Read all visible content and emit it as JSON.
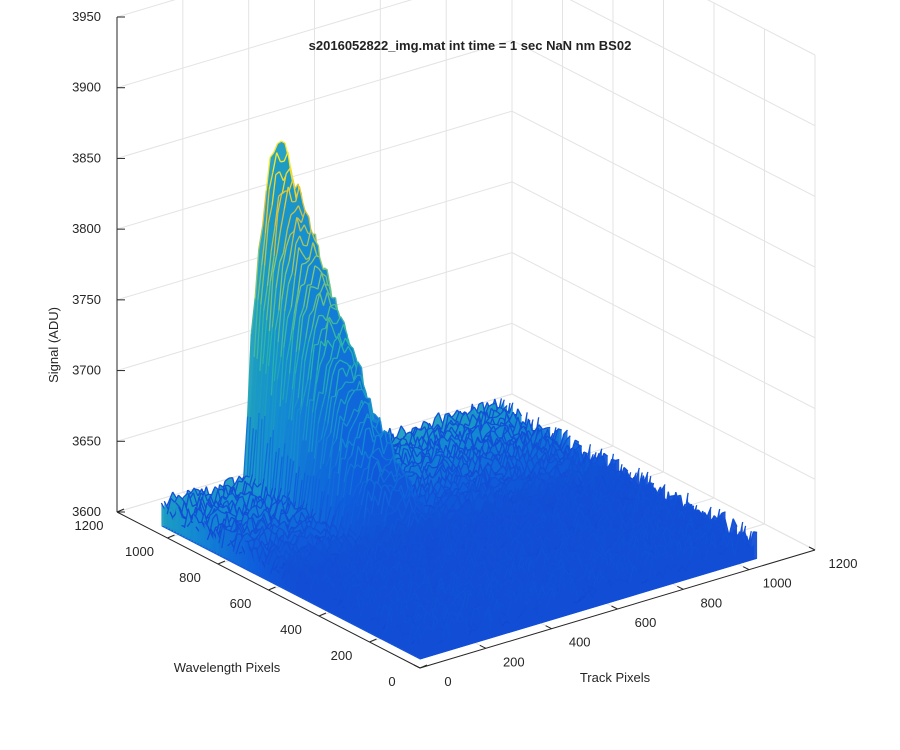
{
  "chart_data": {
    "type": "surface",
    "title": "s2016052822_img.mat int time = 1 sec  NaN nm BS02",
    "xlabel": "Track Pixels",
    "ylabel": "Wavelength Pixels",
    "zlabel": "Signal (ADU)",
    "xlim": [
      0,
      1200
    ],
    "ylim": [
      0,
      1200
    ],
    "zlim": [
      3600,
      3950
    ],
    "xticks": [
      "0",
      "200",
      "400",
      "600",
      "800",
      "1000",
      "1200"
    ],
    "yticks": [
      "0",
      "200",
      "400",
      "600",
      "800",
      "1000",
      "1200"
    ],
    "zticks": [
      "3600",
      "3650",
      "3700",
      "3750",
      "3800",
      "3850",
      "3900",
      "3950"
    ],
    "grid": true,
    "colormap": "parula",
    "surface_extent": {
      "track": [
        0,
        1024
      ],
      "wavelength": [
        0,
        1024
      ]
    },
    "baseline_signal": 3620,
    "noise_amplitude": 8,
    "peak": {
      "wavelength_start": 1024,
      "wavelength_end": 480,
      "track_start": 250,
      "track_end": 470,
      "max_signal": 3850
    }
  }
}
